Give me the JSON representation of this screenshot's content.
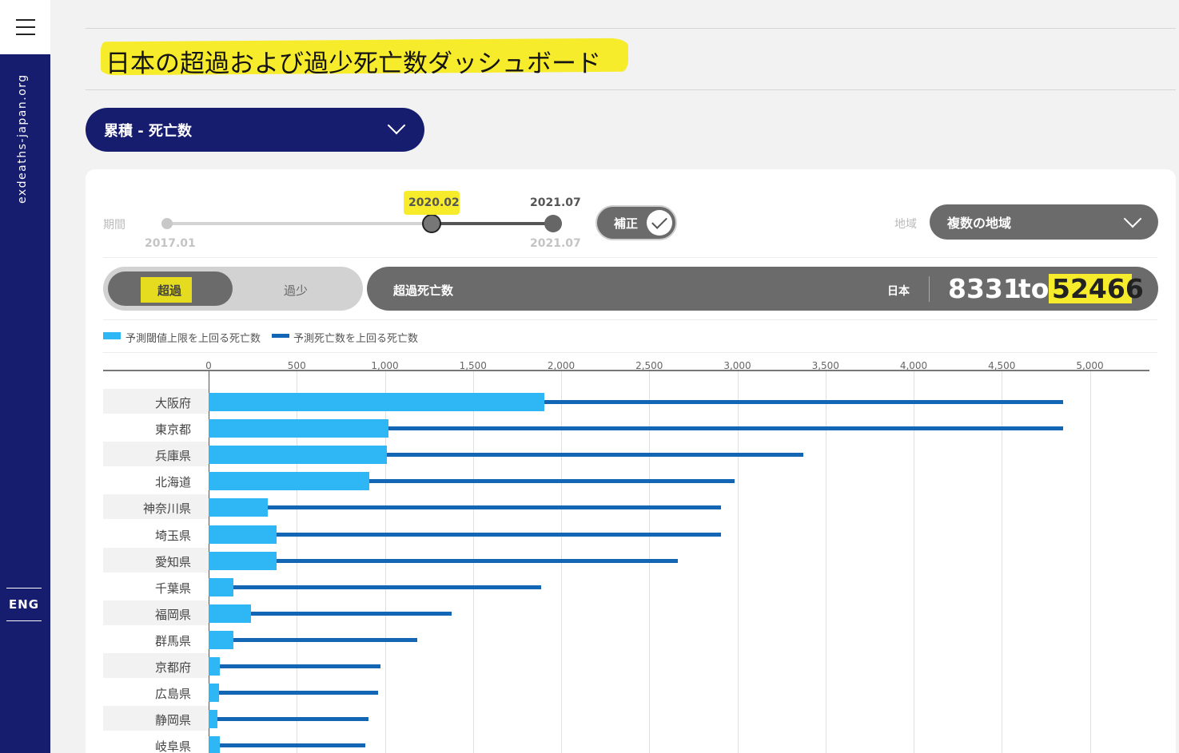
{
  "sidebar": {
    "menu_icon": "hamburger-icon",
    "site": "exdeaths-japan.org",
    "lang": "ENG"
  },
  "header": {
    "title": "日本の超過および過少死亡数ダッシュボード",
    "metric_select": "累積 - 死亡数"
  },
  "filters": {
    "period_label": "期間",
    "slider": {
      "min_label": "2017.01",
      "selected_start": "2020.02",
      "selected_end_top": "2021.07",
      "selected_end_bottom": "2021.07",
      "start_fraction": 0.683,
      "end_fraction": 1.0
    },
    "adjust_toggle": "補正",
    "region_label": "地域",
    "region_select": "複数の地域"
  },
  "mode": {
    "excess": "超過",
    "deficit": "過少"
  },
  "summary": {
    "label": "超過死亡数",
    "region": "日本",
    "low": "8331",
    "sep": "to",
    "high": "52466"
  },
  "colors": {
    "navy": "#161d6f",
    "highlight": "#f7ec2c",
    "bar_light": "#2fb6f5",
    "bar_dark": "#1366b4"
  },
  "chart_data": {
    "type": "bar",
    "orientation": "horizontal",
    "x_ticks": [
      "0",
      "500",
      "1,000",
      "1,500",
      "2,000",
      "2,500",
      "3,000",
      "3,500",
      "4,000",
      "4,500",
      "5,000"
    ],
    "xlim": [
      0,
      5300
    ],
    "legend_placement": "top-left",
    "series": [
      {
        "name": "予測閾値上限を上回る死亡数",
        "color": "#2fb6f5",
        "values": [
          1905,
          1020,
          1010,
          910,
          335,
          385,
          385,
          140,
          240,
          140,
          65,
          60,
          50,
          65
        ]
      },
      {
        "name": "予測死亡数を上回る死亡数",
        "color": "#1366b4",
        "values": [
          4850,
          4850,
          3375,
          2985,
          2905,
          2905,
          2660,
          1885,
          1380,
          1185,
          975,
          960,
          905,
          890
        ]
      }
    ],
    "categories": [
      "大阪府",
      "東京都",
      "兵庫県",
      "北海道",
      "神奈川県",
      "埼玉県",
      "愛知県",
      "千葉県",
      "福岡県",
      "群馬県",
      "京都府",
      "広島県",
      "静岡県",
      "岐阜県"
    ]
  }
}
